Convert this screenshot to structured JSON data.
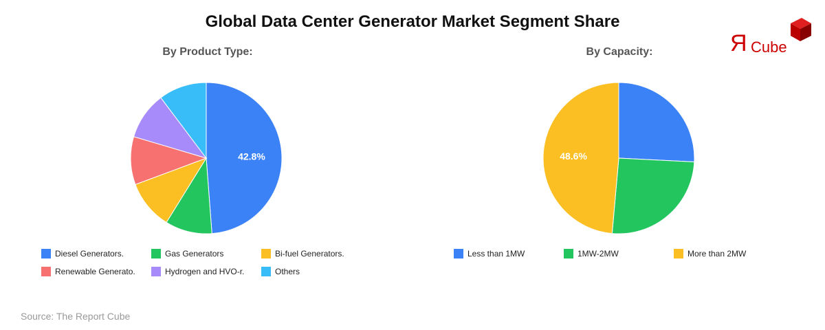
{
  "title": "Global Data Center Generator Market Segment Share",
  "source": "Source: The Report Cube",
  "logo_text": "ЯCube",
  "chart_data": [
    {
      "type": "pie",
      "title": "By Product Type:",
      "categories": [
        "Diesel Generators.",
        "Gas Generators",
        "Bi-fuel Generators.",
        "Renewable Generato.",
        "Hydrogen and HVO-r.",
        "Others"
      ],
      "values": [
        42.8,
        8.8,
        9.2,
        9.0,
        8.9,
        9.0
      ],
      "colors": [
        "#3b82f6",
        "#22c55e",
        "#fbbf24",
        "#f87171",
        "#a78bfa",
        "#38bdf8"
      ],
      "data_labels": [
        "42.8%"
      ],
      "legend": "bottom"
    },
    {
      "type": "pie",
      "title": "By Capacity:",
      "categories": [
        "Less than 1MW",
        "1MW-2MW",
        "More than 2MW"
      ],
      "values": [
        25.8,
        25.6,
        48.6
      ],
      "colors": [
        "#3b82f6",
        "#22c55e",
        "#fbbf24"
      ],
      "data_labels": [
        "",
        "",
        "48.6%"
      ],
      "legend": "bottom"
    }
  ]
}
